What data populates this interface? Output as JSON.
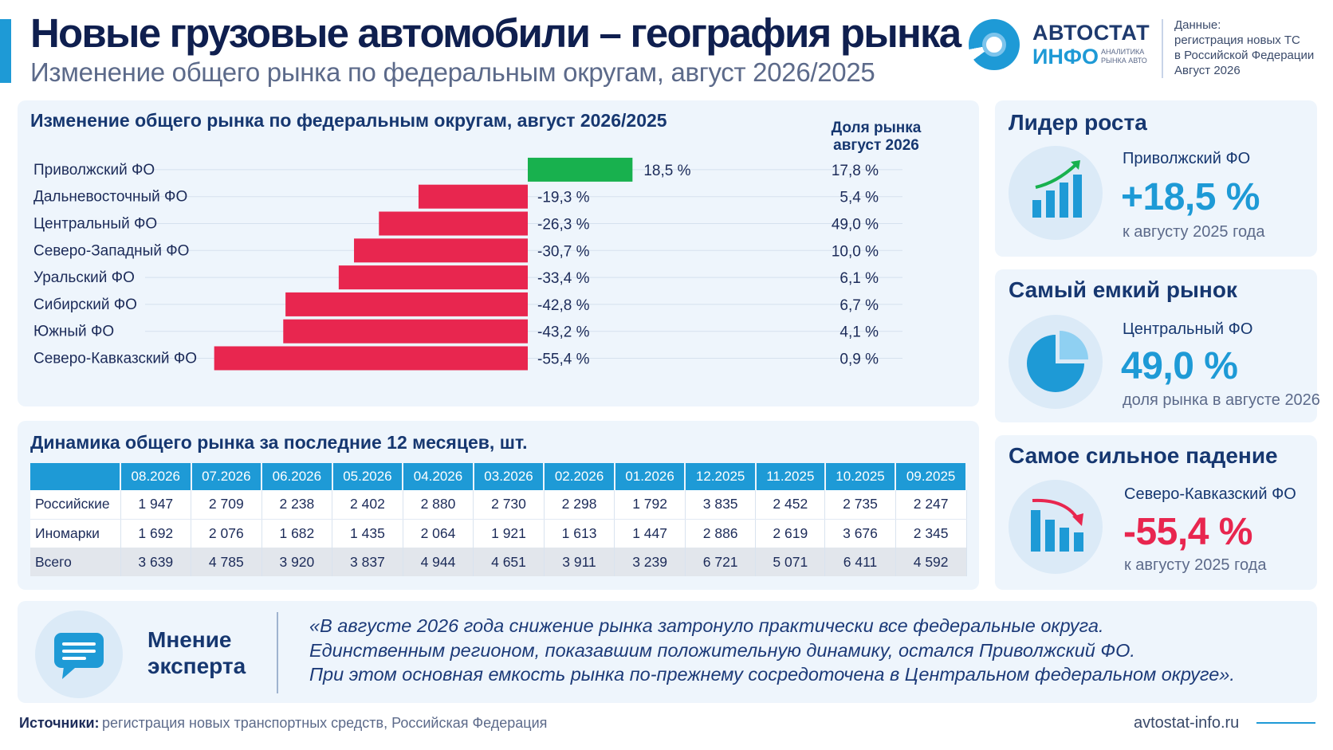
{
  "header": {
    "title": "Новые грузовые автомобили – география рынка",
    "subtitle": "Изменение общего рынка по федеральным округам, август 2026/2025"
  },
  "logo": {
    "line1": "АВТОСТАТ",
    "line2": "ИНФО",
    "tagline": "АНАЛИТИКА РЫНКА АВТО"
  },
  "data_note": {
    "line1": "Данные:",
    "line2": "регистрация новых ТС",
    "line3": "в Российской Федерации",
    "line4": "Август 2026"
  },
  "colors": {
    "positive": "#18b14e",
    "negative": "#e8264f",
    "accent": "#1e9ad6",
    "dark_blue": "#163770",
    "panel_bg": "#eef5fc"
  },
  "chart_data": {
    "type": "bar",
    "orientation": "horizontal",
    "title": "Изменение общего рынка по федеральным округам, август 2026/2025",
    "share_header": "Доля рынка август 2026",
    "categories": [
      "Приволжский ФО",
      "Дальневосточный ФО",
      "Центральный ФО",
      "Северо-Западный ФО",
      "Уральский ФО",
      "Сибирский ФО",
      "Южный ФО",
      "Северо-Кавказский ФО"
    ],
    "series": [
      {
        "values": [
          18.5,
          -19.3,
          -26.3,
          -30.7,
          -33.4,
          -42.8,
          -43.2,
          -55.4
        ]
      }
    ],
    "value_labels": [
      "18,5 %",
      "-19,3 %",
      "-26,3 %",
      "-30,7 %",
      "-33,4 %",
      "-42,8 %",
      "-43,2 %",
      "-55,4 %"
    ],
    "market_share": [
      17.8,
      5.4,
      49.0,
      10.0,
      6.1,
      6.7,
      4.1,
      0.9
    ],
    "market_share_labels": [
      "17,8 %",
      "5,4 %",
      "49,0 %",
      "10,0 %",
      "6,1 %",
      "6,7 %",
      "4,1 %",
      "0,9 %"
    ]
  },
  "table": {
    "title": "Динамика общего рынка за последние 12 месяцев, шт.",
    "columns": [
      "08.2026",
      "07.2026",
      "06.2026",
      "05.2026",
      "04.2026",
      "03.2026",
      "02.2026",
      "01.2026",
      "12.2025",
      "11.2025",
      "10.2025",
      "09.2025"
    ],
    "rows": [
      {
        "label": "Российские",
        "values": [
          "1 947",
          "2 709",
          "2 238",
          "2 402",
          "2 880",
          "2 730",
          "2 298",
          "1 792",
          "3 835",
          "2 452",
          "2 735",
          "2 247"
        ]
      },
      {
        "label": "Иномарки",
        "values": [
          "1 692",
          "2 076",
          "1 682",
          "1 435",
          "2 064",
          "1 921",
          "1 613",
          "1 447",
          "2 886",
          "2 619",
          "3 676",
          "2 345"
        ]
      },
      {
        "label": "Всего",
        "values": [
          "3 639",
          "4 785",
          "3 920",
          "3 837",
          "4 944",
          "4 651",
          "3 911",
          "3 239",
          "6 721",
          "5 071",
          "6 411",
          "4 592"
        ]
      }
    ]
  },
  "sidebar": {
    "leader": {
      "title": "Лидер роста",
      "region": "Приволжский ФО",
      "value": "+18,5 %",
      "note": "к августу 2025 года",
      "icon": "growth-chart-icon"
    },
    "largest": {
      "title": "Самый емкий рынок",
      "region": "Центральный ФО",
      "value": "49,0 %",
      "note": "доля рынка в августе 2026",
      "icon": "pie-chart-icon"
    },
    "decline": {
      "title": "Самое сильное падение",
      "region": "Северо-Кавказский ФО",
      "value": "-55,4 %",
      "note": "к августу 2025 года",
      "icon": "decline-chart-icon"
    }
  },
  "expert": {
    "title_line1": "Мнение",
    "title_line2": "эксперта",
    "icon": "chat-bubble-icon",
    "quote_line1": "«В августе 2026 года снижение рынка затронуло практически все федеральные округа.",
    "quote_line2": "Единственным регионом, показавшим положительную динамику, остался Приволжский ФО.",
    "quote_line3": "При этом основная емкость рынка по-прежнему сосредоточена в Центральном федеральном округе»."
  },
  "footer": {
    "source_label": "Источники:",
    "source_text": "регистрация новых транспортных средств, Российская Федерация",
    "site": "avtostat-info.ru"
  }
}
